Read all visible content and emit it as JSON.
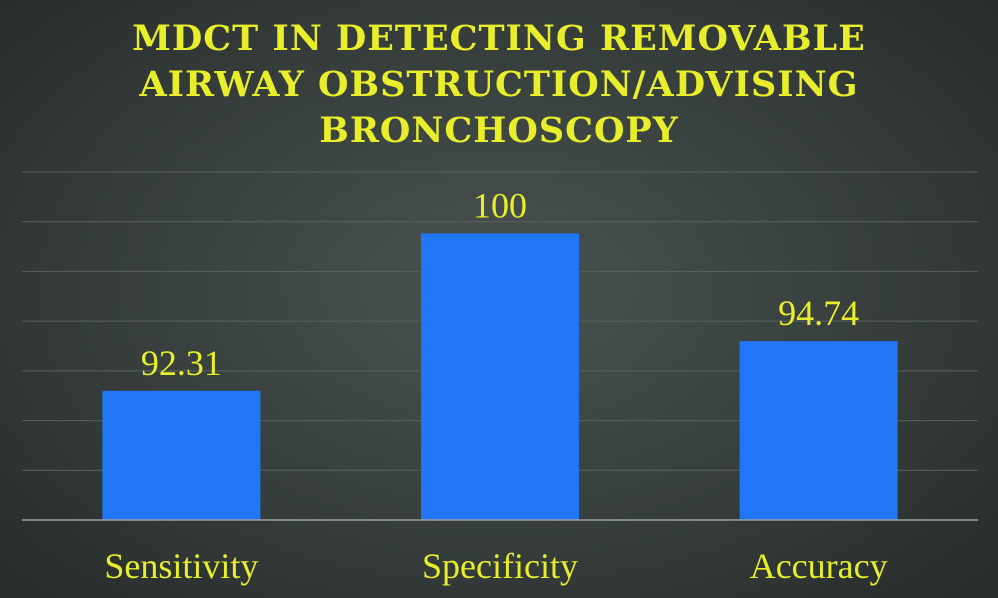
{
  "chart_data": {
    "type": "bar",
    "title": "MDCT IN DETECTING REMOVABLE AIRWAY OBSTRUCTION/ADVISING BRONCHOSCOPY",
    "title_lines": [
      "MDCT IN DETECTING REMOVABLE",
      "AIRWAY OBSTRUCTION/ADVISING",
      "BRONCHOSCOPY"
    ],
    "categories": [
      "Sensitivity",
      "Specificity",
      "Accuracy"
    ],
    "values": [
      92.31,
      100,
      94.74
    ],
    "data_labels": [
      "92.31",
      "100",
      "94.74"
    ],
    "xlabel": "",
    "ylabel": "",
    "ylim": [
      86,
      103
    ],
    "grid": true,
    "legend": "none",
    "colors": {
      "bar": "#2176f5",
      "text": "#e9ee2a",
      "background": "#3a4240"
    }
  }
}
